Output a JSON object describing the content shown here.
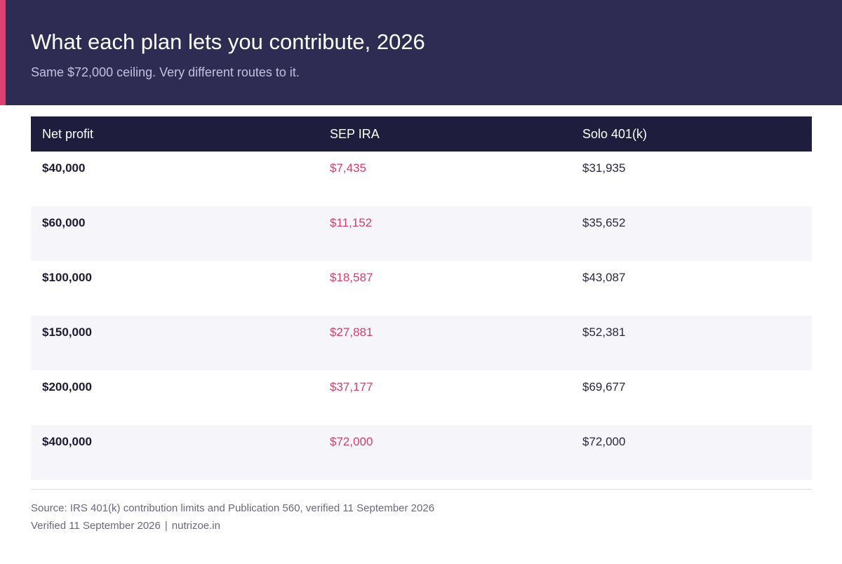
{
  "header": {
    "title": "What each plan lets you contribute, 2026",
    "subtitle": "Same $72,000 ceiling. Very different routes to it."
  },
  "colors": {
    "header_bg": "#2e2c52",
    "accent": "#e0406d",
    "table_header_bg": "#1f1d3e",
    "sep_ira_text": "#d13f6a",
    "striped_row_bg": "#f6f5fa"
  },
  "chart_data": {
    "type": "table",
    "columns": [
      "Net profit",
      "SEP IRA",
      "Solo 401(k)"
    ],
    "rows": [
      [
        "$40,000",
        "$7,435",
        "$31,935"
      ],
      [
        "$60,000",
        "$11,152",
        "$35,652"
      ],
      [
        "$100,000",
        "$18,587",
        "$43,087"
      ],
      [
        "$150,000",
        "$27,881",
        "$52,381"
      ],
      [
        "$200,000",
        "$37,177",
        "$69,677"
      ],
      [
        "$400,000",
        "$72,000",
        "$72,000"
      ]
    ]
  },
  "footer": {
    "source": "Source: IRS 401(k) contribution limits and Publication 560, verified 11 September 2026",
    "verified": "Verified 11 September 2026",
    "separator": "|",
    "site": "nutrizoe.in"
  }
}
